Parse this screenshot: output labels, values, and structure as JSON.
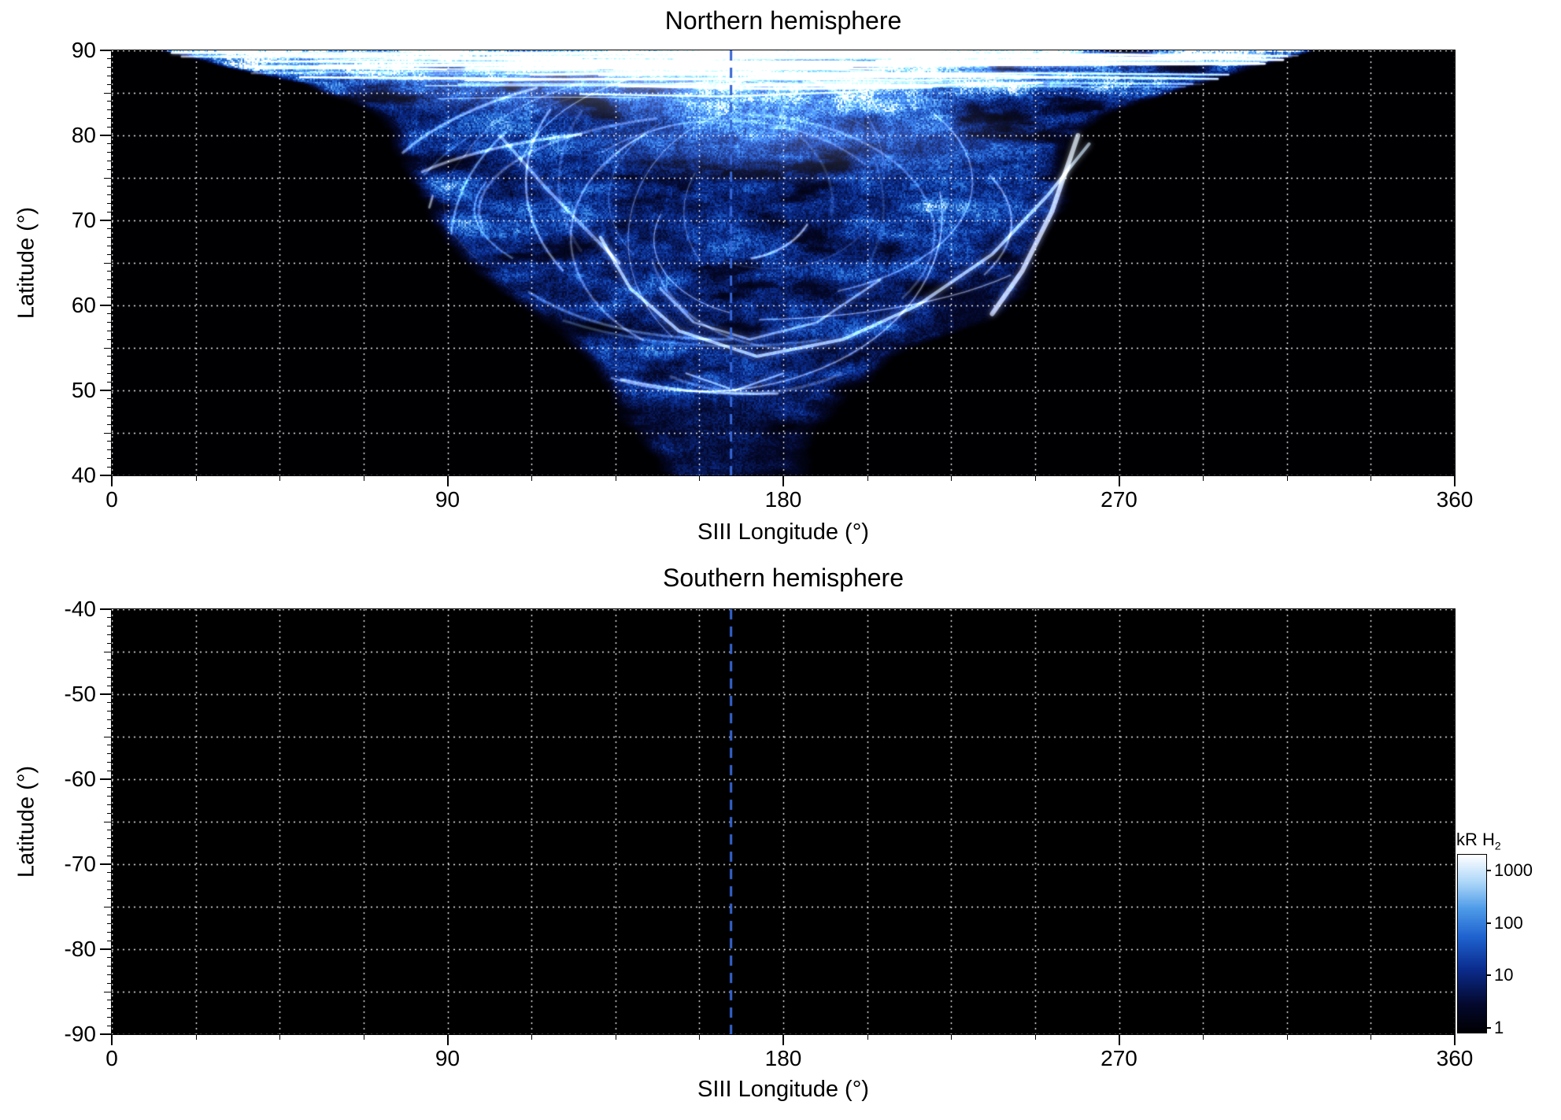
{
  "figure": {
    "background": "#ffffff",
    "text_color": "#000000"
  },
  "panels": {
    "north": {
      "title": "Northern hemisphere",
      "xlabel": "SIII Longitude (°)",
      "ylabel": "Latitude (°)",
      "x_ticks": [
        "0",
        "90",
        "180",
        "270",
        "360"
      ],
      "y_ticks": [
        "90",
        "80",
        "70",
        "60",
        "50",
        "40"
      ]
    },
    "south": {
      "title": "Southern hemisphere",
      "xlabel": "SIII Longitude (°)",
      "ylabel": "Latitude (°)",
      "x_ticks": [
        "0",
        "90",
        "180",
        "270",
        "360"
      ],
      "y_ticks": [
        "-40",
        "-50",
        "-60",
        "-70",
        "-80",
        "-90"
      ]
    }
  },
  "colorbar": {
    "label": "kR H",
    "label_subscript": "2",
    "ticks": [
      "1000",
      "100",
      "10",
      "1"
    ],
    "scale": "log",
    "range": [
      1,
      1000
    ],
    "colormap_stops": [
      {
        "t": 0.0,
        "color": "#000003"
      },
      {
        "t": 0.16,
        "color": "#04092e"
      },
      {
        "t": 0.36,
        "color": "#0b2d8f"
      },
      {
        "t": 0.54,
        "color": "#1f63d0"
      },
      {
        "t": 0.7,
        "color": "#4f9ce8"
      },
      {
        "t": 0.84,
        "color": "#a9d5f8"
      },
      {
        "t": 1.0,
        "color": "#ffffff"
      }
    ]
  },
  "chart_data": {
    "type": "heatmap",
    "title": "Auroral H2 emission maps versus SIII longitude and latitude, northern and southern hemispheres",
    "panels": [
      {
        "title": "Northern hemisphere",
        "xlabel": "SIII Longitude (°)",
        "ylabel": "Latitude (°)",
        "xlim": [
          0,
          360
        ],
        "ylim": [
          40,
          90
        ],
        "grid": {
          "color": "#ffffff",
          "style": "dotted",
          "x_step": 22.5,
          "y_step": 5
        },
        "dashed_line": {
          "x": 166,
          "color": "#3566d6",
          "style": "dashed"
        },
        "emission": {
          "units": "kR H2",
          "scale": "log",
          "range": [
            1,
            1000
          ],
          "description": "Funnel-shaped auroral emission: bright white/light-blue filaments near the pole (lat 83-90) spanning lon ~15-320, swirled oval filament structure around (lon 170, lat 70), bright band on the right edge near lon 235-260, and a faint dark-blue speckled tongue narrowing to lon 145-188 at lat 40",
          "envelope": [
            {
              "lat": 90,
              "lon_min": 12,
              "lon_max": 322,
              "peak_kR": 1000
            },
            {
              "lat": 88,
              "lon_min": 30,
              "lon_max": 305,
              "peak_kR": 900
            },
            {
              "lat": 86,
              "lon_min": 52,
              "lon_max": 290,
              "peak_kR": 700
            },
            {
              "lat": 84,
              "lon_min": 62,
              "lon_max": 278,
              "peak_kR": 550
            },
            {
              "lat": 82,
              "lon_min": 68,
              "lon_max": 268,
              "peak_kR": 420
            },
            {
              "lat": 80,
              "lon_min": 72,
              "lon_max": 262,
              "peak_kR": 350
            },
            {
              "lat": 77,
              "lon_min": 76,
              "lon_max": 258,
              "peak_kR": 280
            },
            {
              "lat": 74,
              "lon_min": 80,
              "lon_max": 257,
              "peak_kR": 230
            },
            {
              "lat": 70,
              "lon_min": 83,
              "lon_max": 256,
              "peak_kR": 180
            },
            {
              "lat": 66,
              "lon_min": 92,
              "lon_max": 252,
              "peak_kR": 140
            },
            {
              "lat": 62,
              "lon_min": 103,
              "lon_max": 249,
              "peak_kR": 110
            },
            {
              "lat": 58,
              "lon_min": 115,
              "lon_max": 235,
              "peak_kR": 80
            },
            {
              "lat": 54,
              "lon_min": 126,
              "lon_max": 210,
              "peak_kR": 50
            },
            {
              "lat": 50,
              "lon_min": 133,
              "lon_max": 200,
              "peak_kR": 30
            },
            {
              "lat": 46,
              "lon_min": 139,
              "lon_max": 193,
              "peak_kR": 18
            },
            {
              "lat": 43,
              "lon_min": 142,
              "lon_max": 190,
              "peak_kR": 12
            },
            {
              "lat": 40,
              "lon_min": 145,
              "lon_max": 188,
              "peak_kR": 8
            }
          ],
          "bright_arcs": [
            {
              "name": "main-oval",
              "color": "#d8edff",
              "width": 4,
              "alpha": 0.5,
              "points": [
                [
                  262,
                  79
                ],
                [
                  251,
                  73
                ],
                [
                  236,
                  66
                ],
                [
                  216,
                  60
                ],
                [
                  196,
                  56
                ],
                [
                  173,
                  54
                ],
                [
                  152,
                  57
                ],
                [
                  139,
                  62
                ],
                [
                  131,
                  68
                ]
              ]
            },
            {
              "name": "inner-arc",
              "color": "#d8edff",
              "width": 3,
              "alpha": 0.4,
              "points": [
                [
                  206,
                  63
                ],
                [
                  189,
                  58
                ],
                [
                  171,
                  56
                ],
                [
                  156,
                  58
                ],
                [
                  147,
                  62
                ]
              ]
            },
            {
              "name": "low-arc",
              "color": "#cfe6ff",
              "width": 2.5,
              "alpha": 0.45,
              "points": [
                [
                  180,
                  52
                ],
                [
                  167,
                  50
                ],
                [
                  154,
                  52
                ]
              ]
            },
            {
              "name": "right-band",
              "color": "#eaf6ff",
              "width": 6,
              "alpha": 0.5,
              "points": [
                [
                  259,
                  80
                ],
                [
                  252,
                  71
                ],
                [
                  244,
                  64
                ],
                [
                  236,
                  59
                ]
              ]
            },
            {
              "name": "left-filament",
              "color": "#cfe6ff",
              "width": 4,
              "alpha": 0.35,
              "points": [
                [
                  104,
                  80
                ],
                [
                  116,
                  74
                ],
                [
                  127,
                  69
                ],
                [
                  136,
                  65
                ]
              ]
            }
          ]
        }
      },
      {
        "title": "Southern hemisphere",
        "xlabel": "SIII Longitude (°)",
        "ylabel": "Latitude (°)",
        "xlim": [
          0,
          360
        ],
        "ylim": [
          -90,
          -40
        ],
        "grid": {
          "color": "#ffffff",
          "style": "dotted",
          "x_step": 22.5,
          "y_step": 5
        },
        "dashed_line": {
          "x": 166,
          "color": "#3566d6",
          "style": "dashed"
        },
        "emission": {
          "units": "kR H2",
          "scale": "log",
          "range": [
            1,
            1000
          ],
          "description": "No emission data; panel entirely black"
        }
      }
    ],
    "colorbar": {
      "label": "kR H2",
      "ticks": [
        1000,
        100,
        10,
        1
      ],
      "scale": "log",
      "position": "bottom-right"
    }
  }
}
